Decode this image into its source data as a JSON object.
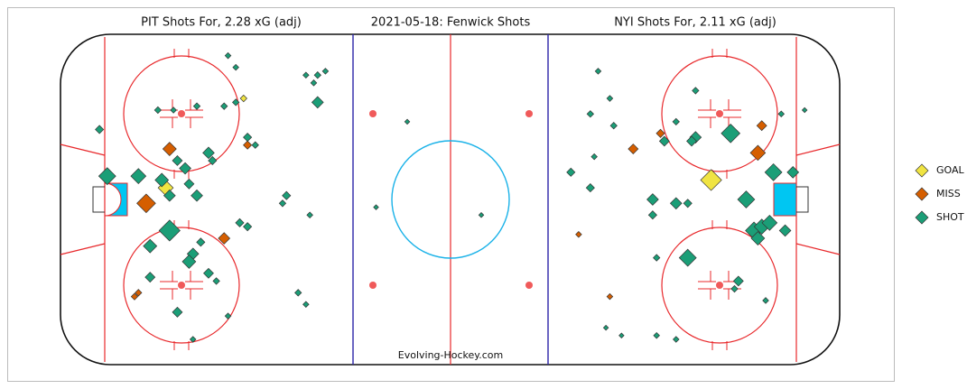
{
  "chart_data": {
    "type": "scatter",
    "title": "2021-05-18:  Fenwick Shots",
    "left_label": "PIT Shots For, 2.28 xG (adj)",
    "right_label": "NYI Shots For, 2.11 xG (adj)",
    "annotation": "Evolving-Hockey.com",
    "xlim": [
      -100,
      100
    ],
    "ylim": [
      -42.5,
      42.5
    ],
    "series": [
      {
        "name": "GOAL",
        "color": "#f0e442",
        "x": [
          -53,
          -73,
          67
        ],
        "y": [
          26,
          3,
          5
        ],
        "sizes": [
          0.006,
          0.06,
          0.13
        ]
      },
      {
        "name": "MISS",
        "color": "#d55e00",
        "x": [
          -72,
          -52,
          -78,
          -58,
          -81,
          -80,
          47,
          54,
          80,
          79,
          33,
          41
        ],
        "y": [
          13,
          14,
          -1,
          -10,
          -25,
          -24,
          13,
          17,
          19,
          12,
          -9,
          -25
        ],
        "sizes": [
          0.045,
          0.012,
          0.1,
          0.03,
          0.006,
          0.006,
          0.02,
          0.012,
          0.02,
          0.06,
          0.004,
          0.004
        ]
      },
      {
        "name": "SHOT",
        "color": "#1b9e77",
        "x": [
          -57,
          -55,
          -37,
          -34,
          -32,
          -35,
          -34,
          -75,
          -71,
          -65,
          -58,
          -55,
          -90,
          -52,
          -50,
          -62,
          -61,
          -70,
          -68,
          -88,
          -80,
          -74,
          -67,
          -72,
          -65,
          -42,
          -43,
          -36,
          -54,
          -52,
          -72,
          -77,
          -64,
          -66,
          -67,
          -62,
          -60,
          -77,
          -70,
          -57,
          -66,
          -39,
          -37,
          -19,
          -11,
          8,
          38,
          63,
          41,
          36,
          42,
          58,
          55,
          63,
          62,
          72,
          85,
          91,
          31,
          37,
          36,
          52,
          58,
          61,
          76,
          83,
          88,
          52,
          78,
          80,
          82,
          86,
          79,
          61,
          53,
          74,
          73,
          81,
          40,
          44,
          53,
          58
        ],
        "y": [
          37,
          34,
          32,
          32,
          33,
          30,
          25,
          23,
          23,
          24,
          24,
          25,
          18,
          16,
          14,
          12,
          10,
          10,
          8,
          6,
          6,
          5,
          4,
          1,
          1,
          1,
          -1,
          -4,
          -6,
          -7,
          -8,
          -12,
          -11,
          -14,
          -16,
          -19,
          -21,
          -20,
          -29,
          -30,
          -36,
          -24,
          -27,
          -2,
          20,
          -4,
          33,
          28,
          26,
          22,
          19,
          20,
          15,
          16,
          15,
          17,
          22,
          23,
          7,
          11,
          3,
          0,
          -1,
          -1,
          0,
          7,
          7,
          -4,
          -8,
          -7,
          -6,
          -8,
          -10,
          -15,
          -15,
          -21,
          -23,
          -26,
          -33,
          -35,
          -35,
          -36
        ],
        "sizes": [
          0.004,
          0.004,
          0.004,
          0.006,
          0.004,
          0.004,
          0.03,
          0.006,
          0.004,
          0.006,
          0.006,
          0.006,
          0.012,
          0.012,
          0.006,
          0.03,
          0.012,
          0.02,
          0.03,
          0.08,
          0.06,
          0.045,
          0.02,
          0.03,
          0.03,
          0.012,
          0.006,
          0.004,
          0.012,
          0.012,
          0.13,
          0.045,
          0.012,
          0.03,
          0.045,
          0.02,
          0.006,
          0.02,
          0.02,
          0.004,
          0.004,
          0.006,
          0.004,
          0.002,
          0.002,
          0.002,
          0.004,
          0.006,
          0.004,
          0.006,
          0.006,
          0.006,
          0.02,
          0.03,
          0.02,
          0.1,
          0.004,
          0.002,
          0.012,
          0.004,
          0.012,
          0.03,
          0.03,
          0.012,
          0.08,
          0.08,
          0.03,
          0.012,
          0.08,
          0.06,
          0.06,
          0.03,
          0.045,
          0.08,
          0.006,
          0.02,
          0.006,
          0.004,
          0.002,
          0.002,
          0.004,
          0.004
        ]
      }
    ]
  }
}
